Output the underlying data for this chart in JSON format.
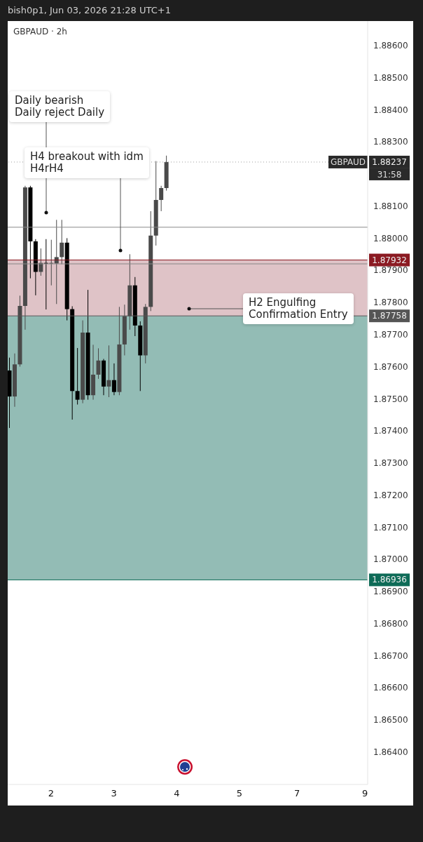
{
  "chart_data": {
    "type": "candlestick",
    "title": "GBPAUD · 2h",
    "subtitle": "bish0p1, Jun 03, 2026 21:28 UTC+1",
    "categories": [
      null,
      null,
      null,
      null,
      null,
      null,
      null,
      null,
      "2",
      null,
      null,
      null,
      null,
      null,
      null,
      null,
      null,
      null,
      null,
      null,
      "3",
      null,
      null,
      null,
      null,
      null,
      null,
      null,
      null,
      null,
      null,
      null,
      "4",
      null,
      null,
      null,
      null,
      null,
      null,
      null,
      null,
      null,
      null,
      null,
      "5",
      null,
      null,
      null,
      null,
      null,
      null,
      null,
      null,
      null,
      null,
      "7",
      null,
      null,
      null,
      null,
      null,
      null,
      null,
      null,
      null,
      null,
      null,
      null,
      "9"
    ],
    "ohlc": [
      [
        1.87588,
        1.87628,
        1.87409,
        1.87507
      ],
      [
        1.87507,
        1.87641,
        1.87475,
        1.87607
      ],
      [
        1.87607,
        1.87821,
        1.876,
        1.87789
      ],
      [
        1.87789,
        1.88163,
        1.87715,
        1.88158
      ],
      [
        1.88158,
        1.88163,
        1.87875,
        1.8799
      ],
      [
        1.8799,
        1.87997,
        1.87822,
        1.87895
      ],
      [
        1.87895,
        1.87968,
        1.87883,
        1.87923
      ],
      [
        1.87923,
        1.87997,
        1.87778,
        1.87921
      ],
      [
        1.87921,
        1.87995,
        1.87853,
        1.87923
      ],
      [
        1.87921,
        1.88057,
        1.87795,
        1.87941
      ],
      [
        1.87941,
        1.88057,
        1.87919,
        1.87986
      ],
      [
        1.87986,
        1.88,
        1.87744,
        1.87779
      ],
      [
        1.87779,
        1.87788,
        1.87435,
        1.87524
      ],
      [
        1.87524,
        1.87658,
        1.87482,
        1.87497
      ],
      [
        1.87497,
        1.87744,
        1.87486,
        1.87706
      ],
      [
        1.87706,
        1.87839,
        1.87497,
        1.87511
      ],
      [
        1.87511,
        1.87668,
        1.87497,
        1.87575
      ],
      [
        1.87575,
        1.87657,
        1.87562,
        1.87619
      ],
      [
        1.87619,
        1.87624,
        1.87511,
        1.87538
      ],
      [
        1.87538,
        1.87666,
        1.87505,
        1.87558
      ],
      [
        1.87558,
        1.8761,
        1.87511,
        1.87521
      ],
      [
        1.87521,
        1.87786,
        1.87511,
        1.87669
      ],
      [
        1.87669,
        1.87793,
        1.87635,
        1.87757
      ],
      [
        1.87757,
        1.8795,
        1.87715,
        1.87853
      ],
      [
        1.87853,
        1.87879,
        1.87695,
        1.87728
      ],
      [
        1.87728,
        1.87741,
        1.87524,
        1.87635
      ],
      [
        1.87635,
        1.87795,
        1.8761,
        1.87786
      ],
      [
        1.87786,
        1.88084,
        1.87773,
        1.88008
      ],
      [
        1.88008,
        1.8824,
        1.87977,
        1.88119
      ],
      [
        1.88119,
        1.88163,
        1.88084,
        1.88156
      ],
      [
        1.88156,
        1.88257,
        1.88148,
        1.88237
      ],
      null,
      null,
      null,
      null,
      null,
      null,
      null,
      null,
      null,
      null,
      null,
      null,
      null,
      null,
      null,
      null,
      null,
      null,
      null,
      null,
      null,
      null,
      null,
      null,
      null,
      null,
      null,
      null,
      null,
      null,
      null,
      null,
      null,
      null,
      null,
      null,
      null,
      null
    ],
    "colors": [
      "#000000",
      "#4a4a4a",
      "#4a4a4a",
      "#4a4a4a",
      "#000000",
      "#000000",
      "#4a4a4a",
      "#000000",
      "#4a4a4a",
      "#4a4a4a",
      "#4a4a4a",
      "#000000",
      "#000000",
      "#000000",
      "#4a4a4a",
      "#000000",
      "#4a4a4a",
      "#4a4a4a",
      "#000000",
      "#4a4a4a",
      "#000000",
      "#4a4a4a",
      "#4a4a4a",
      "#4a4a4a",
      "#000000",
      "#000000",
      "#4a4a4a",
      "#4a4a4a",
      "#4a4a4a",
      "#4a4a4a",
      "#4a4a4a",
      null,
      null,
      null,
      null,
      null,
      null,
      null,
      null,
      null,
      null,
      null,
      null,
      null,
      null,
      null,
      null,
      null,
      null,
      null,
      null,
      null,
      null,
      null,
      null,
      null,
      null,
      null,
      null,
      null,
      null,
      null,
      null,
      null,
      null,
      null,
      null,
      null,
      null
    ],
    "ylim": [
      1.86299,
      1.88676
    ],
    "yticks": [
      {
        "value": 1.864,
        "label": "1.86400"
      },
      {
        "value": 1.865,
        "label": "1.86500"
      },
      {
        "value": 1.866,
        "label": "1.86600"
      },
      {
        "value": 1.867,
        "label": "1.86700"
      },
      {
        "value": 1.868,
        "label": "1.86800"
      },
      {
        "value": 1.869,
        "label": "1.86900"
      },
      {
        "value": 1.87,
        "label": "1.87000"
      },
      {
        "value": 1.871,
        "label": "1.87100"
      },
      {
        "value": 1.872,
        "label": "1.87200"
      },
      {
        "value": 1.873,
        "label": "1.87300"
      },
      {
        "value": 1.874,
        "label": "1.87400"
      },
      {
        "value": 1.875,
        "label": "1.87500"
      },
      {
        "value": 1.876,
        "label": "1.87600"
      },
      {
        "value": 1.877,
        "label": "1.87700"
      },
      {
        "value": 1.878,
        "label": "1.87800"
      },
      {
        "value": 1.879,
        "label": "1.87900"
      },
      {
        "value": 1.88,
        "label": "1.88000"
      },
      {
        "value": 1.881,
        "label": "1.88100"
      },
      {
        "value": 1.883,
        "label": "1.88300"
      },
      {
        "value": 1.884,
        "label": "1.88400"
      },
      {
        "value": 1.885,
        "label": "1.88500"
      },
      {
        "value": 1.886,
        "label": "1.88600"
      }
    ],
    "bands": [
      {
        "axis": "y",
        "from": 1.87758,
        "to": 1.87932,
        "color": "#dfc3c7"
      },
      {
        "axis": "y",
        "from": 1.86936,
        "to": 1.87758,
        "color": "#93bcb5"
      }
    ],
    "ref_lines": [
      {
        "axis": "y",
        "value": 1.88237,
        "label": "1.88237",
        "color": "#9e9e9e",
        "line_style": "dotted"
      },
      {
        "axis": "y",
        "value": 1.87932,
        "label": "1.87932",
        "color": "#8b1a22"
      },
      {
        "axis": "y",
        "value": 1.87758,
        "label": "1.87758",
        "color": "#555555"
      },
      {
        "axis": "y",
        "value": 1.86936,
        "label": "1.86936",
        "color": "#0e6b57"
      },
      {
        "axis": "y",
        "value": 1.88034,
        "color": "#888888"
      },
      {
        "axis": "y",
        "value": 1.8792,
        "color": "#888888"
      }
    ],
    "annotations": [
      "GBPAUD",
      "31:58",
      "Daily bearish\nDaily reject Daily",
      "H4 breakout with idm\nH4rH4",
      "H2 Engulfing\nConfirmation Entry"
    ]
  }
}
